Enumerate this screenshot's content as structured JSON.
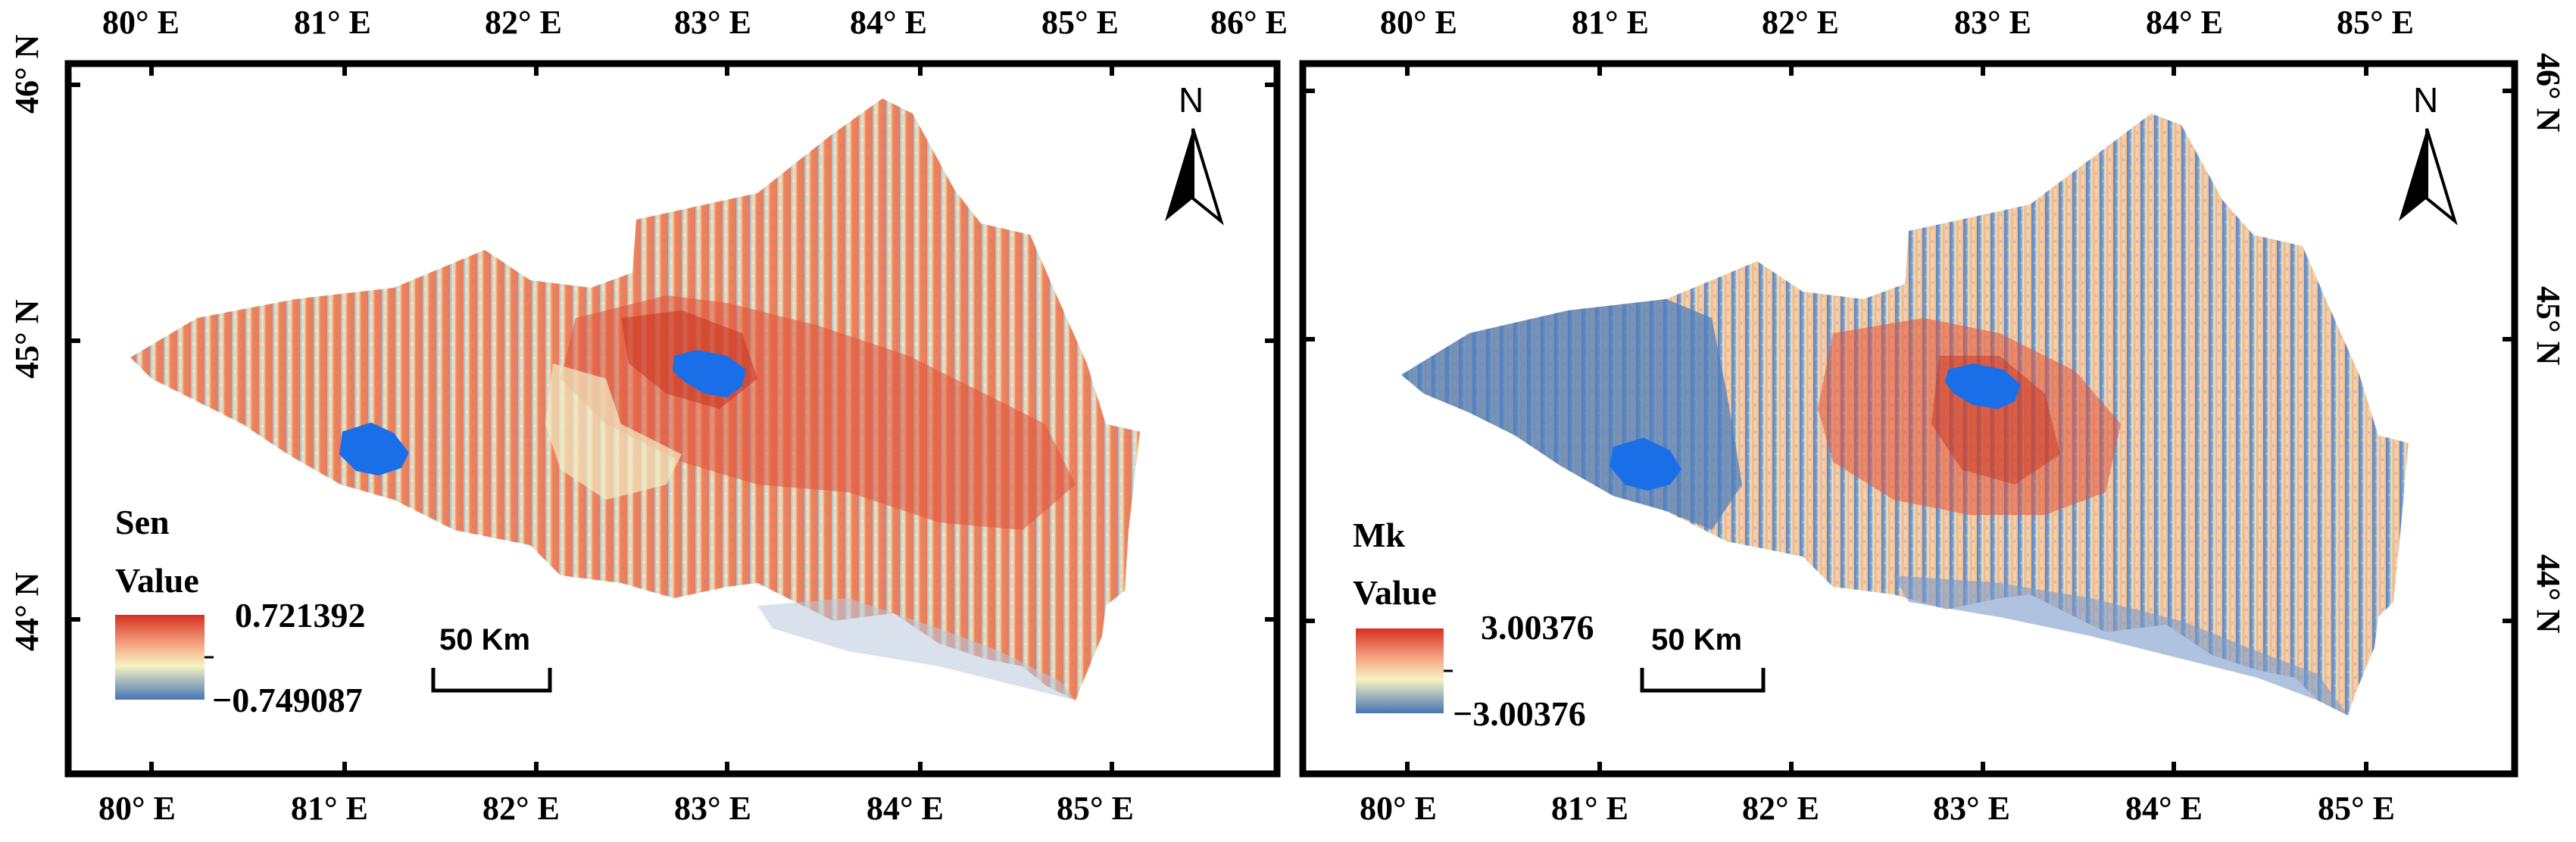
{
  "panels": [
    {
      "id": "sen",
      "legend": {
        "title": "Sen",
        "subtitle": "Value",
        "max_label": "0.721392",
        "min_label": "−0.749087"
      },
      "scale_label": "50 Km",
      "north_label": "N",
      "top_lon_labels": [
        "80° E",
        "81° E",
        "82° E",
        "83° E",
        "84° E",
        "85° E",
        "86° E"
      ],
      "bottom_lon_labels": [
        "80° E",
        "81° E",
        "82° E",
        "83° E",
        "84° E",
        "85° E"
      ],
      "lat_labels": [
        "46° N",
        "45° N",
        "44° N"
      ],
      "colors": {
        "high": "#d7301f",
        "mid_high": "#f4a582",
        "mid": "#f7f3c2",
        "low": "#4575b4",
        "water": "#1a6fe8"
      }
    },
    {
      "id": "mk",
      "legend": {
        "title": "Mk",
        "subtitle": "Value",
        "max_label": "3.00376",
        "min_label": "−3.00376"
      },
      "scale_label": "50 Km",
      "north_label": "N",
      "top_lon_labels": [
        "80° E",
        "81° E",
        "82° E",
        "83° E",
        "84° E",
        "85° E"
      ],
      "bottom_lon_labels": [
        "80° E",
        "81° E",
        "82° E",
        "83° E",
        "84° E",
        "85° E"
      ],
      "lat_labels": [
        "46° N",
        "45° N",
        "44° N"
      ],
      "colors": {
        "high": "#d7301f",
        "mid_high": "#f4a582",
        "mid": "#f7f3c2",
        "low": "#4575b4",
        "water": "#1a6fe8"
      }
    }
  ]
}
